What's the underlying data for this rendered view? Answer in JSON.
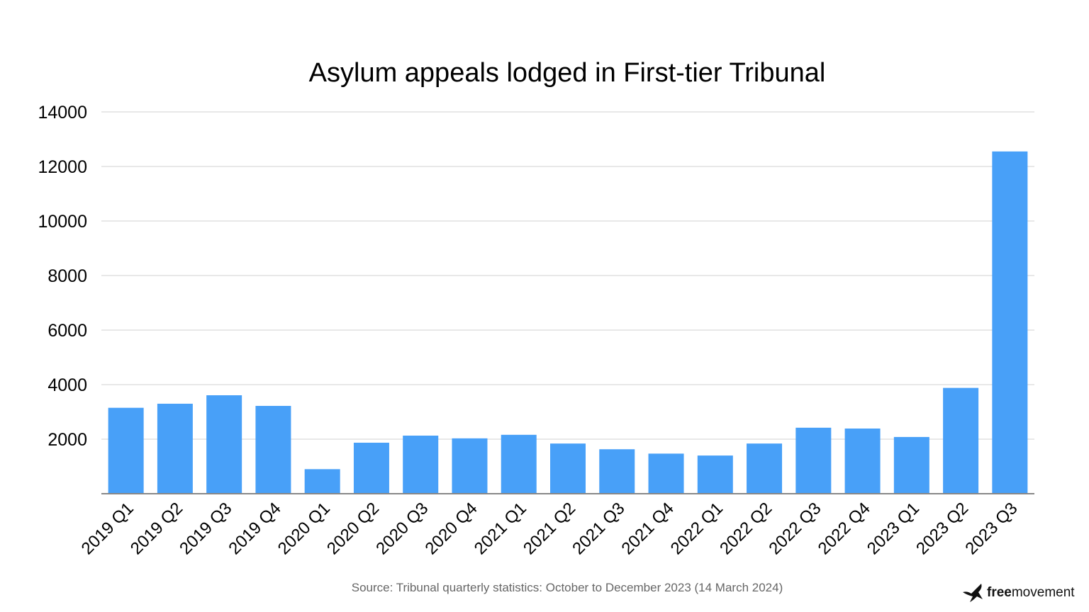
{
  "chart_data": {
    "type": "bar",
    "title": "Asylum appeals lodged in First-tier Tribunal",
    "xlabel": "",
    "ylabel": "",
    "ylim": [
      0,
      14000
    ],
    "yticks": [
      "2000",
      "4000",
      "6000",
      "8000",
      "10000",
      "12000",
      "14000"
    ],
    "grid": true,
    "categories": [
      "2019 Q1",
      "2019 Q2",
      "2019 Q3",
      "2019 Q4",
      "2020 Q1",
      "2020 Q2",
      "2020 Q3",
      "2020 Q4",
      "2021 Q1",
      "2021 Q2",
      "2021 Q3",
      "2021 Q4",
      "2022 Q1",
      "2022 Q2",
      "2022 Q3",
      "2022 Q4",
      "2023 Q1",
      "2023 Q2",
      "2023 Q3"
    ],
    "values": [
      3150,
      3300,
      3610,
      3220,
      900,
      1870,
      2130,
      2030,
      2160,
      1840,
      1630,
      1470,
      1400,
      1840,
      2420,
      2390,
      2080,
      3880,
      12550
    ],
    "bar_color": "#48a0f8",
    "source": "Source: Tribunal quarterly statistics: October to December 2023 (14 March 2024)"
  },
  "logo": {
    "bold": "free",
    "regular": "movement"
  }
}
